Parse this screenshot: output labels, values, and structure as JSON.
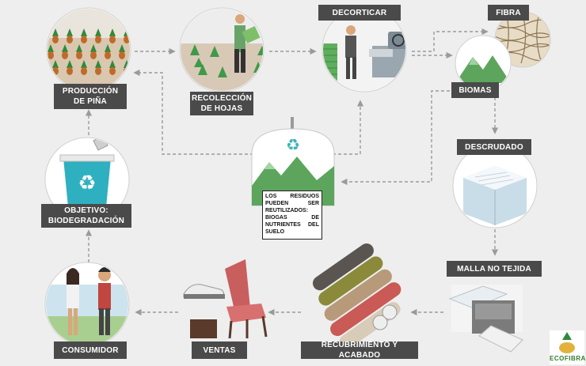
{
  "stages": {
    "produccion": "PRODUCCIÓN\nDE PIÑA",
    "recoleccion": "RECOLECCIÓN\nDE HOJAS",
    "decorticar": "DECORTICAR",
    "fibra": "FIBRA",
    "biomas": "BIOMAS",
    "descrudado": "DESCRUDADO",
    "malla": "MALLA NO TEJIDA",
    "recubrimiento": "RECUBRIMIENTO Y ACABADO",
    "ventas": "VENTAS",
    "consumidor": "CONSUMIDOR",
    "objetivo": "OBJETIVO:\nBIODEGRADACIÓN"
  },
  "residuos_note": "LOS RESIDUOS PUEDEN SER REUTILIZADOS: BIOGAS DE NUTRIENTES DEL SUELO",
  "brand_name": "ECOFIBRA",
  "colors": {
    "label_bg": "#4a4a4a",
    "arrow": "#9a9a9a",
    "green": "#5aa35a",
    "teal": "#3bb3b5"
  },
  "icons": [
    "pineapple-field-icon",
    "worker-harvest-icon",
    "decorticating-machine-icon",
    "fiber-bundle-icon",
    "biomass-mountain-icon",
    "degumming-box-icon",
    "nonwoven-machine-icon",
    "fabric-rolls-icon",
    "chair-shoe-icon",
    "couple-icon",
    "recycle-bin-icon",
    "biogas-tank-icon",
    "pineapple-logo-icon"
  ]
}
